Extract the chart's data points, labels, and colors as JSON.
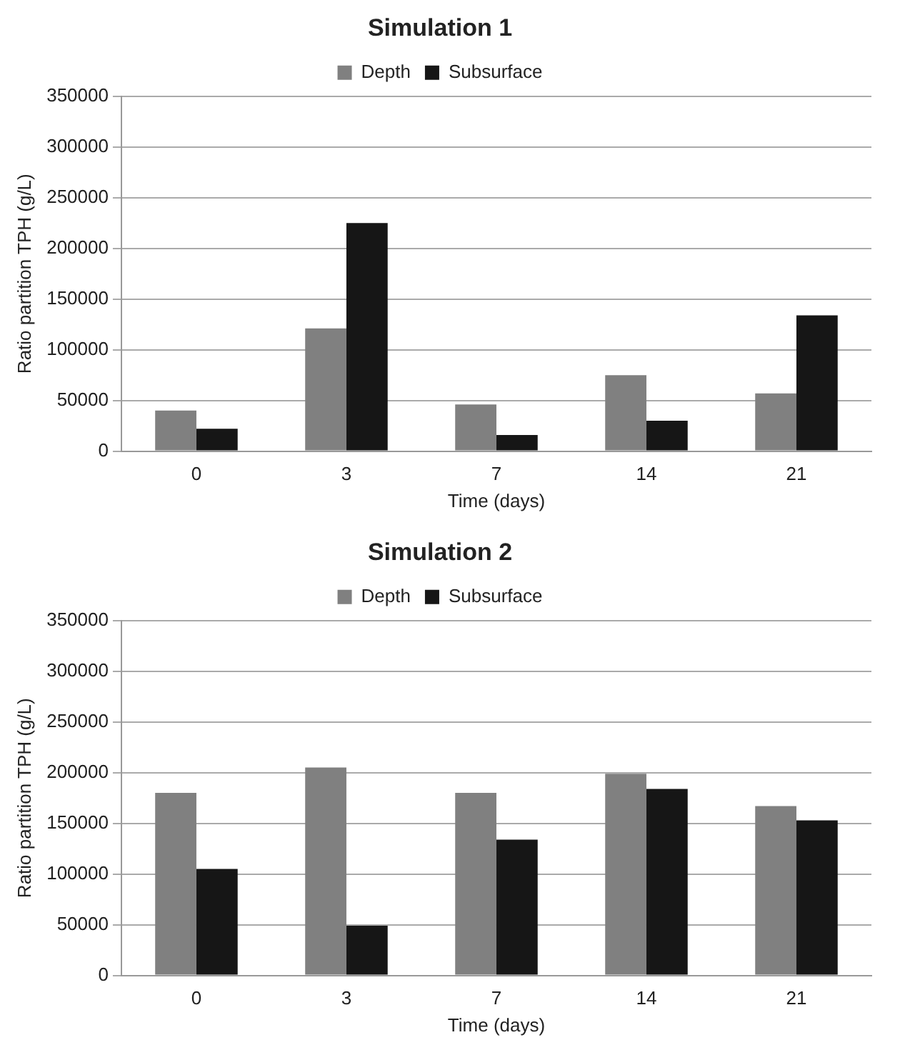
{
  "chart_data": [
    {
      "type": "bar",
      "title": "Simulation 1",
      "xlabel": "Time (days)",
      "ylabel": "Ratio partition TPH (g/L)",
      "categories": [
        "0",
        "3",
        "7",
        "14",
        "21"
      ],
      "series": [
        {
          "name": "Depth",
          "color": "#808080",
          "values": [
            40000,
            121000,
            46000,
            75000,
            57000
          ]
        },
        {
          "name": "Subsurface",
          "color": "#161616",
          "values": [
            22000,
            225000,
            16000,
            30000,
            134000
          ]
        }
      ],
      "ylim": [
        0,
        350000
      ],
      "yticks": [
        0,
        50000,
        100000,
        150000,
        200000,
        250000,
        300000,
        350000
      ],
      "grid": "y",
      "legend": "top"
    },
    {
      "type": "bar",
      "title": "Simulation 2",
      "xlabel": "Time (days)",
      "ylabel": "Ratio partition TPH (g/L)",
      "categories": [
        "0",
        "3",
        "7",
        "14",
        "21"
      ],
      "series": [
        {
          "name": "Depth",
          "color": "#808080",
          "values": [
            180000,
            205000,
            180000,
            199000,
            167000
          ]
        },
        {
          "name": "Subsurface",
          "color": "#161616",
          "values": [
            105000,
            49000,
            134000,
            184000,
            153000
          ]
        }
      ],
      "ylim": [
        0,
        350000
      ],
      "yticks": [
        0,
        50000,
        100000,
        150000,
        200000,
        250000,
        300000,
        350000
      ],
      "grid": "y",
      "legend": "top"
    }
  ]
}
